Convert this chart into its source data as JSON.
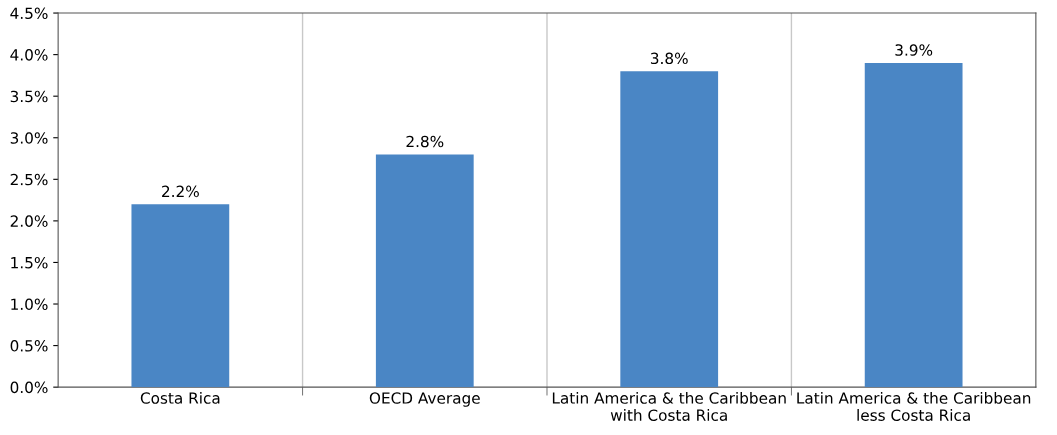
{
  "chart_data": {
    "type": "bar",
    "categories": [
      "Costa Rica",
      "OECD Average",
      "Latin America & the Caribbean\nwith Costa Rica",
      "Latin America & the Caribbean\nless Costa Rica"
    ],
    "values": [
      2.2,
      2.8,
      3.8,
      3.9
    ],
    "color": "#4a86c5",
    "value_labels": [
      "2.2%",
      "2.8%",
      "3.8%",
      "3.9%"
    ],
    "ylim": [
      0,
      4.5
    ],
    "yticks": [
      {
        "value": 0,
        "label": "0.0%"
      },
      {
        "value": 0.5,
        "label": "0.5%"
      },
      {
        "value": 1,
        "label": "1.0%"
      },
      {
        "value": 1.5,
        "label": "1.5%"
      },
      {
        "value": 2,
        "label": "2.0%"
      },
      {
        "value": 2.5,
        "label": "2.5%"
      },
      {
        "value": 3,
        "label": "3.0%"
      },
      {
        "value": 3.5,
        "label": "3.5%"
      },
      {
        "value": 4,
        "label": "4.0%"
      },
      {
        "value": 4.5,
        "label": "4.5%"
      }
    ],
    "grid": "x"
  }
}
